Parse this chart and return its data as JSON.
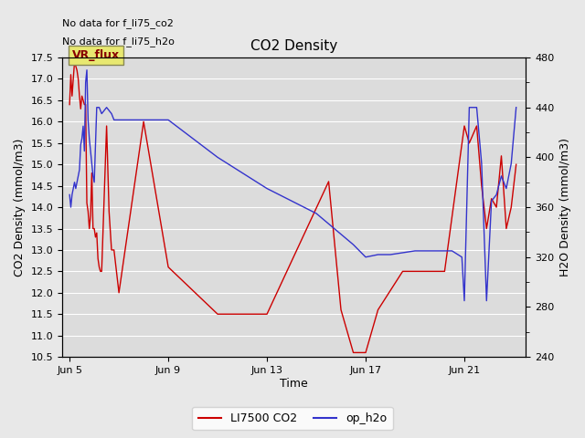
{
  "title": "CO2 Density",
  "xlabel": "Time",
  "ylabel_left": "CO2 Density (mmol/m3)",
  "ylabel_right": "H2O Density (mmol/m3)",
  "ylim_left": [
    10.5,
    17.5
  ],
  "ylim_right": [
    240,
    480
  ],
  "no_data_text": [
    "No data for f_li75_co2",
    "No data for f_li75_h2o"
  ],
  "vr_flux_label": "VR_flux",
  "legend_entries": [
    "LI7500 CO2",
    "op_h2o"
  ],
  "legend_colors": [
    "#cc0000",
    "#0000cc"
  ],
  "xtick_labels": [
    "Jun 5",
    "Jun 9",
    "Jun 13",
    "Jun 17",
    "Jun 21"
  ],
  "xtick_positions": [
    5,
    9,
    13,
    17,
    21
  ],
  "xlim": [
    4.7,
    23.5
  ],
  "red_x": [
    5.0,
    5.05,
    5.1,
    5.15,
    5.2,
    5.25,
    5.3,
    5.35,
    5.4,
    5.45,
    5.5,
    5.55,
    5.6,
    5.65,
    5.7,
    5.75,
    5.8,
    5.85,
    5.9,
    5.95,
    6.0,
    6.05,
    6.1,
    6.15,
    6.2,
    6.25,
    6.3,
    6.5,
    6.6,
    6.7,
    6.8,
    6.9,
    7.0,
    8.0,
    9.0,
    11.0,
    13.0,
    15.5,
    16.0,
    16.5,
    17.0,
    17.5,
    18.5,
    20.2,
    21.0,
    21.2,
    21.5,
    21.7,
    21.9,
    22.1,
    22.3,
    22.5,
    22.7,
    22.9,
    23.1
  ],
  "red_y": [
    16.4,
    17.1,
    16.6,
    17.0,
    17.4,
    17.3,
    17.2,
    17.0,
    16.6,
    16.3,
    16.6,
    16.5,
    16.4,
    16.4,
    14.1,
    13.9,
    13.5,
    13.8,
    14.8,
    13.5,
    13.5,
    13.3,
    13.4,
    12.8,
    12.6,
    12.5,
    12.5,
    15.9,
    13.9,
    13.0,
    13.0,
    12.5,
    12.0,
    16.0,
    12.6,
    11.5,
    11.5,
    14.6,
    11.6,
    10.6,
    10.6,
    11.6,
    12.5,
    12.5,
    15.9,
    15.5,
    15.9,
    14.5,
    13.5,
    14.2,
    14.0,
    15.2,
    13.5,
    14.0,
    15.0
  ],
  "blue_x": [
    5.0,
    5.05,
    5.1,
    5.15,
    5.2,
    5.25,
    5.3,
    5.35,
    5.4,
    5.45,
    5.5,
    5.55,
    5.6,
    5.65,
    5.7,
    5.75,
    5.8,
    5.85,
    5.9,
    5.95,
    6.0,
    6.1,
    6.2,
    6.3,
    6.5,
    6.7,
    6.8,
    7.0,
    8.0,
    9.0,
    11.0,
    13.0,
    15.0,
    16.5,
    17.0,
    17.5,
    18.0,
    19.0,
    20.5,
    20.9,
    21.0,
    21.2,
    21.5,
    21.7,
    21.9,
    22.1,
    22.3,
    22.5,
    22.7,
    22.9,
    23.1
  ],
  "blue_y": [
    370,
    360,
    370,
    375,
    380,
    375,
    380,
    385,
    390,
    410,
    415,
    425,
    405,
    460,
    470,
    430,
    415,
    405,
    395,
    385,
    380,
    440,
    440,
    435,
    440,
    435,
    430,
    430,
    430,
    430,
    400,
    375,
    355,
    330,
    320,
    322,
    322,
    325,
    325,
    320,
    285,
    440,
    440,
    395,
    285,
    365,
    370,
    385,
    375,
    395,
    440
  ],
  "figsize": [
    6.4,
    4.8
  ],
  "dpi": 100
}
